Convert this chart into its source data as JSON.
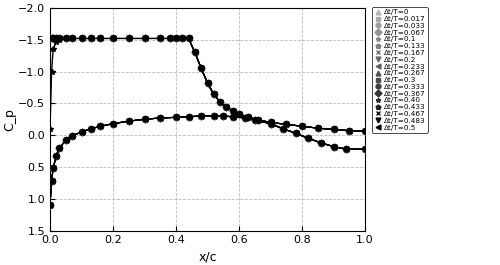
{
  "xlabel": "x/c",
  "ylabel": "C_p",
  "xlim": [
    0,
    1
  ],
  "ylim": [
    1.5,
    -2
  ],
  "xticks": [
    0,
    0.2,
    0.4,
    0.6,
    0.8,
    1
  ],
  "yticks": [
    -2,
    -1.5,
    -1,
    -0.5,
    0,
    0.5,
    1,
    1.5
  ],
  "legend_entries": [
    "Δt/T=0",
    "Δt/T=0.017",
    "Δt/T=0.033",
    "Δt/T=0.067",
    "Δt/T=0.1",
    "Δt/T=0.133",
    "Δt/T=0.167",
    "Δt/T=0.2",
    "Δt/T=0.233",
    "Δt/T=0.267",
    "Δt/T=0.3",
    "Δt/T=0.333",
    "Δt/T=0.367",
    "Δt/T=0.40",
    "Δt/T=0.433",
    "Δt/T=0.467",
    "Δt/T=0.483",
    "Δt/T=0.5"
  ],
  "marker_styles": [
    "^",
    "s",
    "o",
    "D",
    "*",
    "p",
    "x",
    "v",
    "<",
    "^",
    "s",
    "o",
    "D",
    "*",
    "p",
    "x",
    "v",
    "<"
  ],
  "n_lines": 18,
  "upper_x": [
    0.0,
    0.005,
    0.01,
    0.02,
    0.03,
    0.05,
    0.07,
    0.1,
    0.13,
    0.16,
    0.2,
    0.25,
    0.3,
    0.35,
    0.38,
    0.4,
    0.42,
    0.44,
    0.46,
    0.48,
    0.5,
    0.52,
    0.54,
    0.56,
    0.58,
    0.6,
    0.63,
    0.66,
    0.7,
    0.75,
    0.8,
    0.85,
    0.9,
    0.95,
    1.0
  ],
  "upper_cp_steady": [
    -0.1,
    -1.0,
    -1.35,
    -1.47,
    -1.5,
    -1.52,
    -1.52,
    -1.52,
    -1.52,
    -1.52,
    -1.52,
    -1.52,
    -1.52,
    -1.52,
    -1.52,
    -1.52,
    -1.52,
    -1.52,
    -1.3,
    -1.05,
    -0.82,
    -0.64,
    -0.52,
    -0.44,
    -0.38,
    -0.33,
    -0.28,
    -0.24,
    -0.2,
    -0.17,
    -0.14,
    -0.11,
    -0.09,
    -0.07,
    -0.06
  ],
  "lower_x": [
    0.0,
    0.005,
    0.01,
    0.02,
    0.03,
    0.05,
    0.07,
    0.1,
    0.13,
    0.16,
    0.2,
    0.25,
    0.3,
    0.35,
    0.4,
    0.44,
    0.48,
    0.52,
    0.55,
    0.58,
    0.62,
    0.65,
    0.7,
    0.74,
    0.78,
    0.82,
    0.86,
    0.9,
    0.94,
    1.0
  ],
  "lower_cp": [
    1.1,
    0.72,
    0.52,
    0.32,
    0.2,
    0.08,
    0.01,
    -0.05,
    -0.1,
    -0.14,
    -0.18,
    -0.22,
    -0.25,
    -0.27,
    -0.28,
    -0.29,
    -0.3,
    -0.3,
    -0.3,
    -0.29,
    -0.27,
    -0.24,
    -0.18,
    -0.1,
    -0.03,
    0.05,
    0.12,
    0.18,
    0.22,
    0.22
  ],
  "background_color": "#ffffff",
  "grid_color": "#aaaaaa"
}
